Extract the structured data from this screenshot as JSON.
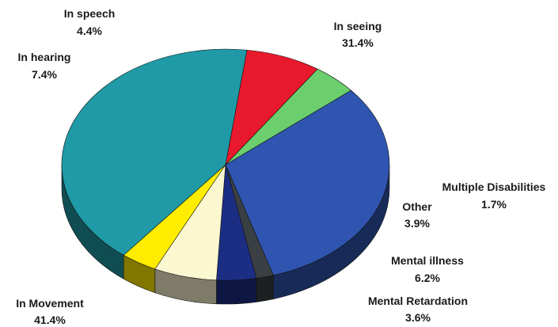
{
  "chart_data": {
    "type": "pie",
    "title": "",
    "slices": [
      {
        "label": "In seeing",
        "value": 31.4,
        "value_text": "31.4%",
        "color": "#2f55b0"
      },
      {
        "label": "Multiple Disabilities",
        "value": 1.7,
        "value_text": "1.7%",
        "color": "#3a3f44"
      },
      {
        "label": "Other",
        "value": 3.9,
        "value_text": "3.9%",
        "color": "#1c2e84"
      },
      {
        "label": "Mental illness",
        "value": 6.2,
        "value_text": "6.2%",
        "color": "#fbf7d0"
      },
      {
        "label": "Mental Retardation",
        "value": 3.6,
        "value_text": "3.6%",
        "color": "#ffec00"
      },
      {
        "label": "In Movement",
        "value": 41.4,
        "value_text": "41.4%",
        "color": "#1f9aa6"
      },
      {
        "label": "In hearing",
        "value": 7.4,
        "value_text": "7.4%",
        "color": "#e8192c"
      },
      {
        "label": "In speech",
        "value": 4.4,
        "value_text": "4.4%",
        "color": "#6ccf6e"
      }
    ]
  }
}
